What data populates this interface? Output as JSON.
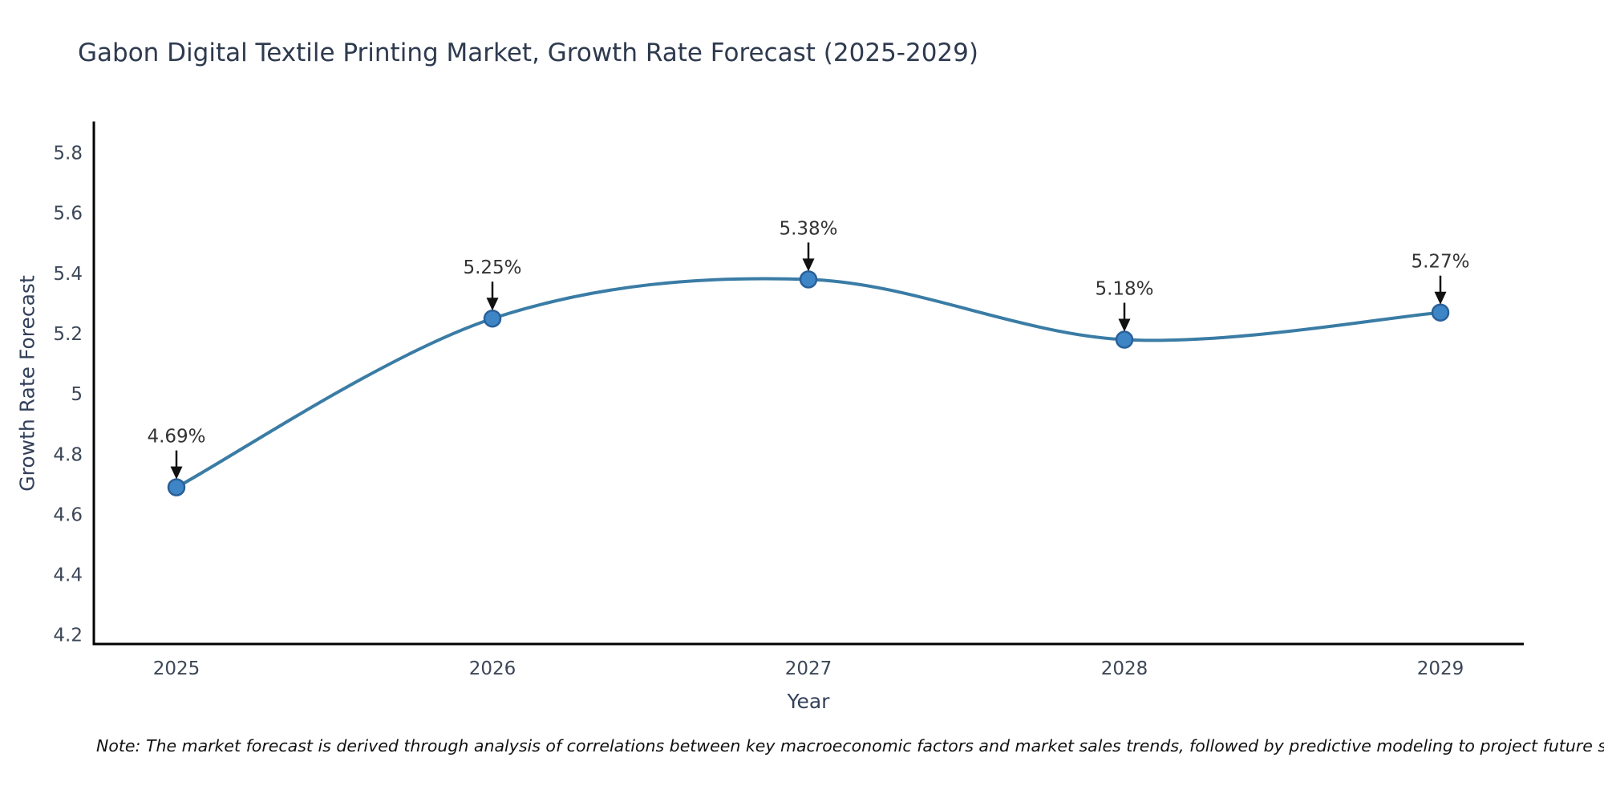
{
  "title": "Gabon Digital Textile Printing Market, Growth Rate Forecast (2025-2029)",
  "note": "Note: The market forecast is derived through analysis of correlations between key macroeconomic factors and market sales trends, followed by predictive modeling to project future sales",
  "chart_data": {
    "type": "line",
    "categories": [
      "2025",
      "2026",
      "2027",
      "2028",
      "2029"
    ],
    "values": [
      4.69,
      5.25,
      5.38,
      5.18,
      5.27
    ],
    "point_labels": [
      "4.69%",
      "5.25%",
      "5.38%",
      "5.18%",
      "5.27%"
    ],
    "title": "Gabon Digital Textile Printing Market, Growth Rate Forecast (2025-2029)",
    "xlabel": "Year",
    "ylabel": "Growth Rate Forecast",
    "ytick_labels": [
      "4.2",
      "4.4",
      "4.6",
      "4.8",
      "5",
      "5.2",
      "5.4",
      "5.6",
      "5.8"
    ],
    "yticks": [
      4.2,
      4.4,
      4.6,
      4.8,
      5.0,
      5.2,
      5.4,
      5.6,
      5.8
    ],
    "ylim": [
      4.17,
      5.9
    ],
    "grid": false,
    "legend": "none",
    "smooth": true,
    "annotations_have_arrows": true,
    "line_color": "#3a7ca5",
    "marker_color": "#3e85c6",
    "marker_edge_color": "#2a6099",
    "annotation_text_color": "#333333",
    "arrow_color": "#111111",
    "axis_color": "#000000",
    "tick_label_color": "#3c4758",
    "title_color": "#2e3a4e"
  }
}
